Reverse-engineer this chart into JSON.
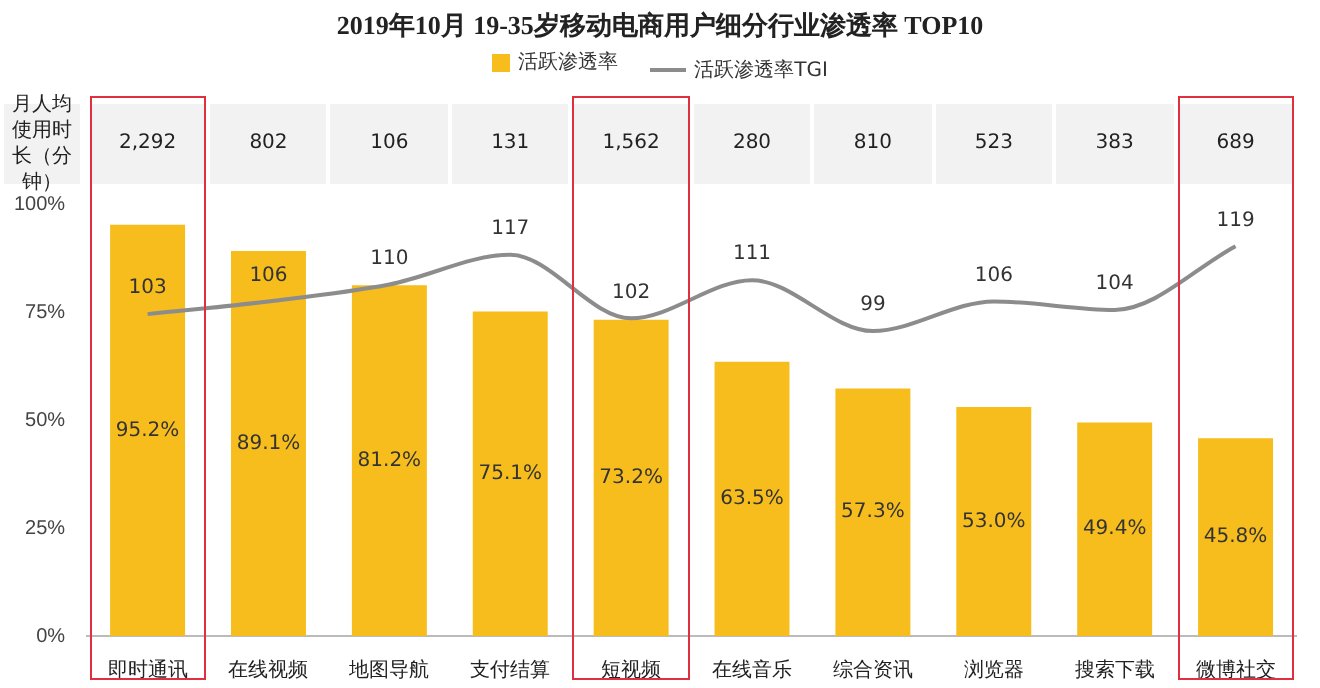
{
  "chart_data": {
    "type": "bar",
    "title": "2019年10月 19-35岁移动电商用户细分行业渗透率 TOP10",
    "categories": [
      "即时通讯",
      "在线视频",
      "地图导航",
      "支付结算",
      "短视频",
      "在线音乐",
      "综合资讯",
      "浏览器",
      "搜索下载",
      "微博社交"
    ],
    "series": [
      {
        "name": "活跃渗透率",
        "color": "#f7bd1d",
        "values": [
          95.2,
          89.1,
          81.2,
          75.1,
          73.2,
          63.5,
          57.3,
          53.0,
          49.4,
          45.8
        ],
        "value_labels": [
          "95.2%",
          "89.1%",
          "81.2%",
          "75.1%",
          "73.2%",
          "63.5%",
          "57.3%",
          "53.0%",
          "49.4%",
          "45.8%"
        ]
      },
      {
        "name": "活跃渗透率TGI",
        "type": "line",
        "axis": "y2",
        "color": "#8c8c8c",
        "values": [
          103,
          106,
          110,
          117,
          102,
          111,
          99,
          106,
          104,
          119
        ],
        "value_labels": [
          "103",
          "106",
          "110",
          "117",
          "102",
          "111",
          "99",
          "106",
          "104",
          "119"
        ]
      }
    ],
    "ylim": [
      0,
      100
    ],
    "yticks": [
      {
        "value": 0,
        "label": "0%"
      },
      {
        "value": 25,
        "label": "25%"
      },
      {
        "value": 50,
        "label": "50%"
      },
      {
        "value": 75,
        "label": "75%"
      },
      {
        "value": 100,
        "label": "100%"
      }
    ],
    "grid": false,
    "legend": "top",
    "marker": "none",
    "line_style": "solid",
    "annotations": [
      "月人均使用时长（分钟）",
      "2,292",
      "802",
      "106",
      "131",
      "1,562",
      "280",
      "810",
      "523",
      "383",
      "689"
    ]
  }
}
